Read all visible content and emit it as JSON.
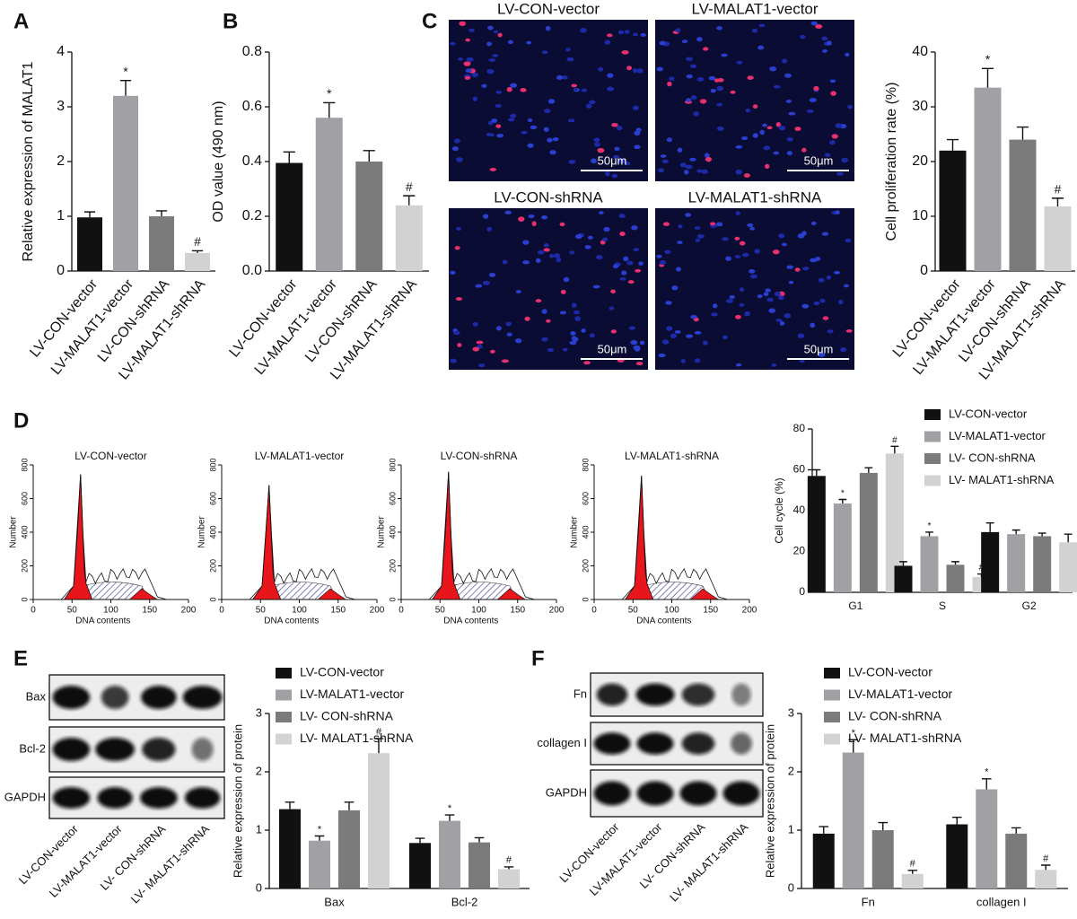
{
  "panels": [
    "A",
    "B",
    "C",
    "D",
    "E",
    "F"
  ],
  "chart_data": [
    {
      "type": "bar",
      "ylabel": "Relative expression of MALAT1",
      "categories": [
        "LV-CON-vector",
        "LV-MALAT1-vector",
        "LV-CON-shRNA",
        "LV-MALAT1-shRNA"
      ],
      "values": [
        0.98,
        3.2,
        1.0,
        0.33
      ],
      "errors": [
        0.1,
        0.28,
        0.1,
        0.04
      ],
      "colors": [
        "#111111",
        "#a0a0a5",
        "#7b7b7b",
        "#d2d2d2"
      ],
      "annotations": [
        {
          "index": 1,
          "text": "*"
        },
        {
          "index": 3,
          "text": "#"
        }
      ],
      "ylim": [
        0,
        4
      ],
      "yticks": [
        0,
        1,
        2,
        3,
        4
      ]
    },
    {
      "type": "bar",
      "ylabel": "OD value (490 nm)",
      "categories": [
        "LV-CON-vector",
        "LV-MALAT1-vector",
        "LV-CON-shRNA",
        "LV-MALAT1-shRNA"
      ],
      "values": [
        0.395,
        0.56,
        0.4,
        0.24
      ],
      "errors": [
        0.04,
        0.055,
        0.04,
        0.035
      ],
      "colors": [
        "#111111",
        "#a0a0a5",
        "#7b7b7b",
        "#d2d2d2"
      ],
      "annotations": [
        {
          "index": 1,
          "text": "*"
        },
        {
          "index": 3,
          "text": "#"
        }
      ],
      "ylim": [
        0,
        0.8
      ],
      "yticks": [
        {
          "value": 0,
          "label": "0.0"
        },
        0.2,
        0.4,
        0.6,
        0.8
      ]
    },
    {
      "type": "bar",
      "ylabel": "Cell proliferation rate (%)",
      "categories": [
        "LV-CON-vector",
        "LV-MALAT1-vector",
        "LV-CON-shRNA",
        "LV-MALAT1-shRNA"
      ],
      "values": [
        22,
        33.5,
        24,
        11.8
      ],
      "errors": [
        2,
        3.5,
        2.3,
        1.5
      ],
      "colors": [
        "#111111",
        "#a0a0a5",
        "#7b7b7b",
        "#d2d2d2"
      ],
      "annotations": [
        {
          "index": 1,
          "text": "*"
        },
        {
          "index": 3,
          "text": "#"
        }
      ],
      "ylim": [
        0,
        40
      ],
      "yticks": [
        0,
        10,
        20,
        30,
        40
      ]
    },
    {
      "type": "bar",
      "ylabel": "Cell cycle (%)",
      "categories": [
        "G1",
        "S",
        "G2"
      ],
      "series": [
        {
          "name": "LV-CON-vector",
          "color": "#111111",
          "values": [
            57,
            13,
            29.5
          ],
          "errors": [
            3,
            2,
            4.5
          ]
        },
        {
          "name": "LV-MALAT1-vector",
          "color": "#a0a0a5",
          "values": [
            43.5,
            27.5,
            28.5
          ],
          "errors": [
            2,
            2,
            2
          ],
          "annotations": [
            {
              "index": 0,
              "text": "*"
            },
            {
              "index": 1,
              "text": "*"
            }
          ]
        },
        {
          "name": "LV- CON-shRNA",
          "color": "#7b7b7b",
          "values": [
            58.5,
            13.5,
            27.5
          ],
          "errors": [
            2.5,
            1.5,
            1.5
          ]
        },
        {
          "name": "LV- MALAT1-shRNA",
          "color": "#d2d2d2",
          "values": [
            68,
            7.5,
            24.5
          ],
          "errors": [
            3.5,
            1.5,
            4
          ],
          "annotations": [
            {
              "index": 0,
              "text": "#"
            },
            {
              "index": 1,
              "text": "#"
            }
          ]
        }
      ],
      "ylim": [
        0,
        80
      ],
      "yticks": [
        0,
        20,
        40,
        60,
        80
      ]
    },
    {
      "type": "bar",
      "ylabel": "Relative expression of protein",
      "categories": [
        "Bax",
        "Bcl-2"
      ],
      "series": [
        {
          "name": "LV-CON-vector",
          "color": "#111111",
          "values": [
            1.36,
            0.78
          ],
          "errors": [
            0.12,
            0.08
          ]
        },
        {
          "name": "LV-MALAT1-vector",
          "color": "#a0a0a5",
          "values": [
            0.82,
            1.16
          ],
          "errors": [
            0.08,
            0.1
          ],
          "annotations": [
            {
              "index": 0,
              "text": "*"
            },
            {
              "index": 1,
              "text": "*"
            }
          ]
        },
        {
          "name": "LV- CON-shRNA",
          "color": "#7b7b7b",
          "values": [
            1.34,
            0.79
          ],
          "errors": [
            0.14,
            0.08
          ]
        },
        {
          "name": "LV- MALAT1-shRNA",
          "color": "#d2d2d2",
          "values": [
            2.32,
            0.33
          ],
          "errors": [
            0.25,
            0.04
          ],
          "annotations": [
            {
              "index": 0,
              "text": "#"
            },
            {
              "index": 1,
              "text": "#"
            }
          ]
        }
      ],
      "ylim": [
        0,
        3
      ],
      "yticks": [
        0,
        1,
        2,
        3
      ]
    },
    {
      "type": "bar",
      "ylabel": "Relative expression of protein",
      "categories": [
        "Fn",
        "collagen I"
      ],
      "series": [
        {
          "name": "LV-CON-vector",
          "color": "#111111",
          "values": [
            0.94,
            1.1
          ],
          "errors": [
            0.12,
            0.12
          ]
        },
        {
          "name": "LV-MALAT1-vector",
          "color": "#a0a0a5",
          "values": [
            2.33,
            1.7
          ],
          "errors": [
            0.22,
            0.18
          ],
          "annotations": [
            {
              "index": 0,
              "text": "*"
            },
            {
              "index": 1,
              "text": "*"
            }
          ]
        },
        {
          "name": "LV- CON-shRNA",
          "color": "#7b7b7b",
          "values": [
            1.0,
            0.94
          ],
          "errors": [
            0.13,
            0.1
          ]
        },
        {
          "name": "LV- MALAT1-shRNA",
          "color": "#d2d2d2",
          "values": [
            0.25,
            0.32
          ],
          "errors": [
            0.06,
            0.08
          ],
          "annotations": [
            {
              "index": 0,
              "text": "#"
            },
            {
              "index": 1,
              "text": "#"
            }
          ]
        }
      ],
      "ylim": [
        0,
        3
      ],
      "yticks": [
        0,
        1,
        2,
        3
      ]
    }
  ],
  "micrographs": {
    "titles": [
      "LV-CON-vector",
      "LV-MALAT1-vector",
      "LV-CON-shRNA",
      "LV-MALAT1-shRNA"
    ],
    "scale_bar": "50μm"
  },
  "flow_cytometry": {
    "titles": [
      "LV-CON-vector",
      "LV-MALAT1-vector",
      "LV-CON-shRNA",
      "LV-MALAT1-shRNA"
    ],
    "xlabel": "DNA contents",
    "ylabel": "Number",
    "xlim": [
      0,
      200
    ],
    "ylim": [
      0,
      800
    ],
    "xticks": [
      0,
      50,
      100,
      150,
      200
    ],
    "yticks": [
      0,
      200,
      400,
      600,
      800
    ]
  },
  "blots": [
    {
      "rows": [
        "Bax",
        "Bcl-2",
        "GAPDH"
      ],
      "lanes": [
        "LV-CON-vector",
        "LV-MALAT1-vector",
        "LV- CON-shRNA",
        "LV- MALAT1-shRNA"
      ]
    },
    {
      "rows": [
        "Fn",
        "collagen I",
        "GAPDH"
      ],
      "lanes": [
        "LV-CON-vector",
        "LV-MALAT1-vector",
        "LV- CON-shRNA",
        "LV- MALAT1-shRNA"
      ]
    }
  ]
}
